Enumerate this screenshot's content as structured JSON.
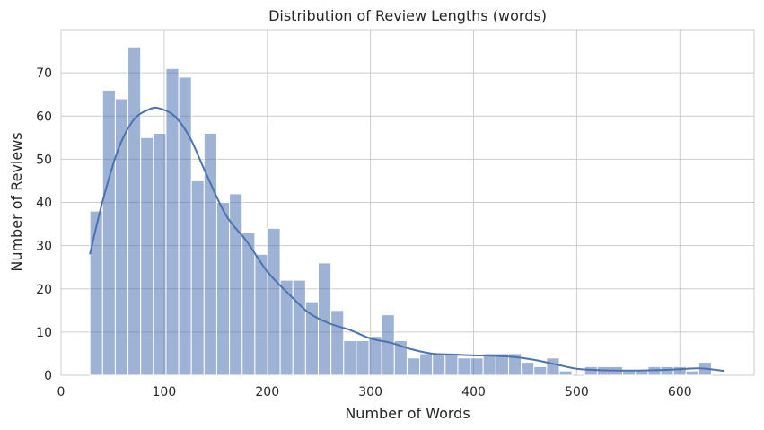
{
  "chart_data": {
    "type": "bar",
    "title": "Distribution of Review Lengths (words)",
    "xlabel": "Number of Words",
    "ylabel": "Number of Reviews",
    "xlim": [
      0,
      672
    ],
    "ylim": [
      0,
      80
    ],
    "xticks": [
      0,
      100,
      200,
      300,
      400,
      500,
      600
    ],
    "yticks": [
      0,
      10,
      20,
      30,
      40,
      50,
      60,
      70
    ],
    "grid": true,
    "bin_start": 28,
    "bin_width": 12.3,
    "counts": [
      38,
      66,
      64,
      76,
      55,
      56,
      71,
      69,
      45,
      56,
      40,
      42,
      33,
      28,
      34,
      22,
      22,
      17,
      26,
      15,
      8,
      8,
      9,
      14,
      8,
      4,
      5,
      5,
      5,
      4,
      4,
      5,
      5,
      5,
      3,
      2,
      4,
      1,
      0,
      2,
      2,
      2,
      1,
      1,
      2,
      2,
      2,
      1,
      3
    ],
    "kde": {
      "x": [
        28,
        40,
        55,
        70,
        85,
        95,
        110,
        125,
        140,
        160,
        180,
        200,
        220,
        240,
        260,
        280,
        300,
        320,
        340,
        360,
        380,
        400,
        420,
        440,
        460,
        480,
        500,
        520,
        540,
        560,
        580,
        600,
        620,
        643
      ],
      "y": [
        28,
        40,
        52,
        59,
        61.5,
        61.8,
        60,
        55,
        47,
        37,
        31,
        24,
        19,
        14.5,
        12,
        10.5,
        8.5,
        7.5,
        6,
        5,
        4.8,
        4.6,
        4.5,
        4.2,
        3.5,
        2.5,
        1.5,
        1.2,
        1.1,
        1.1,
        1.2,
        1.4,
        1.6,
        1
      ]
    },
    "bar_color": "#4c72b0",
    "bar_opacity": 0.55,
    "line_color": "#4c72b0",
    "grid_color": "#cccccc"
  }
}
